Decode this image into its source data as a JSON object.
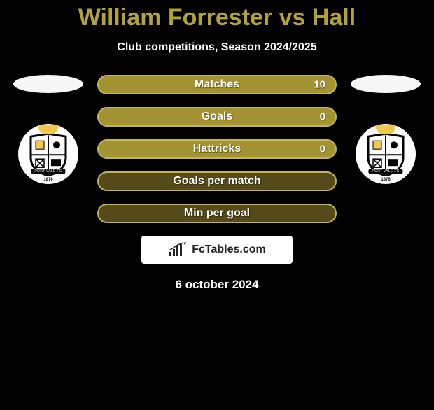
{
  "title": "William Forrester vs Hall",
  "subtitle": "Club competitions, Season 2024/2025",
  "date": "6 october 2024",
  "watermark": {
    "text": "FcTables.com"
  },
  "badge": {
    "ribbon": "PORT VALE FC",
    "year": "1876"
  },
  "colors": {
    "accent": "#b3a239",
    "bar_fill": "#a39332",
    "bar_border": "#c6b651",
    "bar_empty_fill": "#544a1a",
    "bg": "#000000",
    "text": "#ffffff"
  },
  "stats": [
    {
      "label": "Matches",
      "value": "10",
      "filled": true
    },
    {
      "label": "Goals",
      "value": "0",
      "filled": true
    },
    {
      "label": "Hattricks",
      "value": "0",
      "filled": true
    },
    {
      "label": "Goals per match",
      "value": "",
      "filled": false
    },
    {
      "label": "Min per goal",
      "value": "",
      "filled": false
    }
  ]
}
